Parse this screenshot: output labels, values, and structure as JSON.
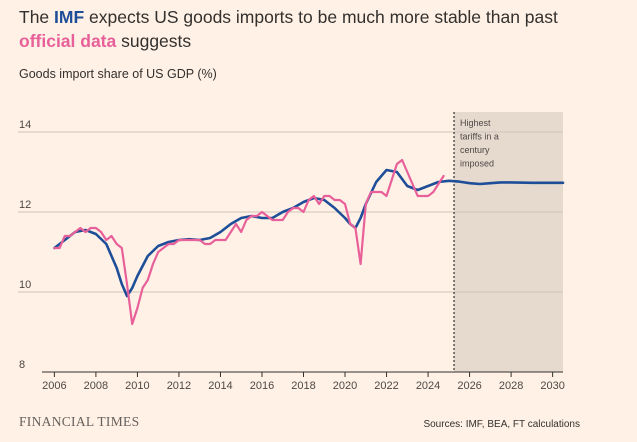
{
  "title": {
    "prefix": "The ",
    "imf": "IMF",
    "middle": " expects US goods imports to be much more stable than past",
    "official": "official data",
    "suffix": " suggests"
  },
  "subtitle": "Goods import share of US GDP (%)",
  "footer": {
    "brand": "FINANCIAL TIMES",
    "sources": "Sources: IMF, BEA, FT calculations"
  },
  "colors": {
    "background": "#fff1e5",
    "imf": "#1f4e99",
    "official": "#e8609a",
    "shade": "#e6d9ce",
    "grid": "#cfc5bb"
  },
  "chart_data": {
    "type": "line",
    "title": "The IMF expects US goods imports to be much more stable than past official data suggests",
    "ylabel": "Goods import share of US GDP (%)",
    "xlabel": "",
    "xlim": [
      2005.5,
      2030.5
    ],
    "ylim": [
      8,
      14.5
    ],
    "yticks": [
      8,
      10,
      12,
      14
    ],
    "xticks": [
      2006,
      2008,
      2010,
      2012,
      2014,
      2016,
      2018,
      2020,
      2022,
      2024,
      2026,
      2028,
      2030
    ],
    "grid": true,
    "shaded_region": {
      "start": 2025.25,
      "end": 2030.5
    },
    "annotation": {
      "x": 2025.25,
      "lines": [
        "Highest",
        "tariffs in a",
        "century",
        "imposed"
      ]
    },
    "series": [
      {
        "name": "IMF",
        "color": "#1f4e99",
        "x": [
          2006.0,
          2006.5,
          2007.0,
          2007.5,
          2008.0,
          2008.5,
          2009.0,
          2009.25,
          2009.5,
          2009.75,
          2010.0,
          2010.5,
          2011.0,
          2011.5,
          2012.0,
          2012.5,
          2013.0,
          2013.5,
          2014.0,
          2014.5,
          2015.0,
          2015.5,
          2016.0,
          2016.5,
          2017.0,
          2017.5,
          2018.0,
          2018.5,
          2019.0,
          2019.5,
          2020.0,
          2020.25,
          2020.5,
          2020.75,
          2021.0,
          2021.5,
          2022.0,
          2022.5,
          2023.0,
          2023.5,
          2024.0,
          2024.5,
          2025.0,
          2025.5,
          2026.0,
          2026.5,
          2027.0,
          2027.5,
          2028.0,
          2029.0,
          2030.0,
          2030.5
        ],
        "values": [
          11.1,
          11.3,
          11.5,
          11.55,
          11.45,
          11.2,
          10.6,
          10.2,
          9.9,
          10.1,
          10.4,
          10.9,
          11.15,
          11.25,
          11.3,
          11.32,
          11.3,
          11.35,
          11.5,
          11.7,
          11.85,
          11.9,
          11.85,
          11.85,
          12.0,
          12.1,
          12.25,
          12.35,
          12.3,
          12.1,
          11.85,
          11.7,
          11.6,
          11.85,
          12.2,
          12.75,
          13.05,
          13.0,
          12.65,
          12.55,
          12.65,
          12.75,
          12.78,
          12.76,
          12.72,
          12.7,
          12.72,
          12.74,
          12.74,
          12.73,
          12.73,
          12.73
        ]
      },
      {
        "name": "Official data",
        "color": "#e8609a",
        "x": [
          2006.0,
          2006.25,
          2006.5,
          2006.75,
          2007.0,
          2007.25,
          2007.5,
          2007.75,
          2008.0,
          2008.25,
          2008.5,
          2008.75,
          2009.0,
          2009.25,
          2009.5,
          2009.75,
          2010.0,
          2010.25,
          2010.5,
          2010.75,
          2011.0,
          2011.25,
          2011.5,
          2011.75,
          2012.0,
          2012.25,
          2012.5,
          2012.75,
          2013.0,
          2013.25,
          2013.5,
          2013.75,
          2014.0,
          2014.25,
          2014.5,
          2014.75,
          2015.0,
          2015.25,
          2015.5,
          2015.75,
          2016.0,
          2016.25,
          2016.5,
          2016.75,
          2017.0,
          2017.25,
          2017.5,
          2017.75,
          2018.0,
          2018.25,
          2018.5,
          2018.75,
          2019.0,
          2019.25,
          2019.5,
          2019.75,
          2020.0,
          2020.25,
          2020.5,
          2020.75,
          2021.0,
          2021.25,
          2021.5,
          2021.75,
          2022.0,
          2022.25,
          2022.5,
          2022.75,
          2023.0,
          2023.25,
          2023.5,
          2023.75,
          2024.0,
          2024.25,
          2024.5,
          2024.75
        ],
        "values": [
          11.1,
          11.1,
          11.4,
          11.4,
          11.5,
          11.6,
          11.5,
          11.6,
          11.6,
          11.5,
          11.3,
          11.4,
          11.2,
          11.1,
          10.2,
          9.2,
          9.6,
          10.1,
          10.3,
          10.7,
          11.0,
          11.1,
          11.2,
          11.2,
          11.3,
          11.3,
          11.3,
          11.3,
          11.3,
          11.2,
          11.2,
          11.3,
          11.3,
          11.3,
          11.5,
          11.7,
          11.5,
          11.8,
          11.9,
          11.9,
          12.0,
          11.9,
          11.8,
          11.8,
          11.8,
          12.0,
          12.1,
          12.1,
          12.0,
          12.3,
          12.4,
          12.2,
          12.4,
          12.4,
          12.3,
          12.3,
          12.2,
          11.7,
          11.6,
          10.7,
          12.2,
          12.5,
          12.5,
          12.5,
          12.4,
          12.8,
          13.2,
          13.3,
          13.0,
          12.7,
          12.4,
          12.4,
          12.4,
          12.5,
          12.7,
          12.9
        ]
      }
    ]
  }
}
